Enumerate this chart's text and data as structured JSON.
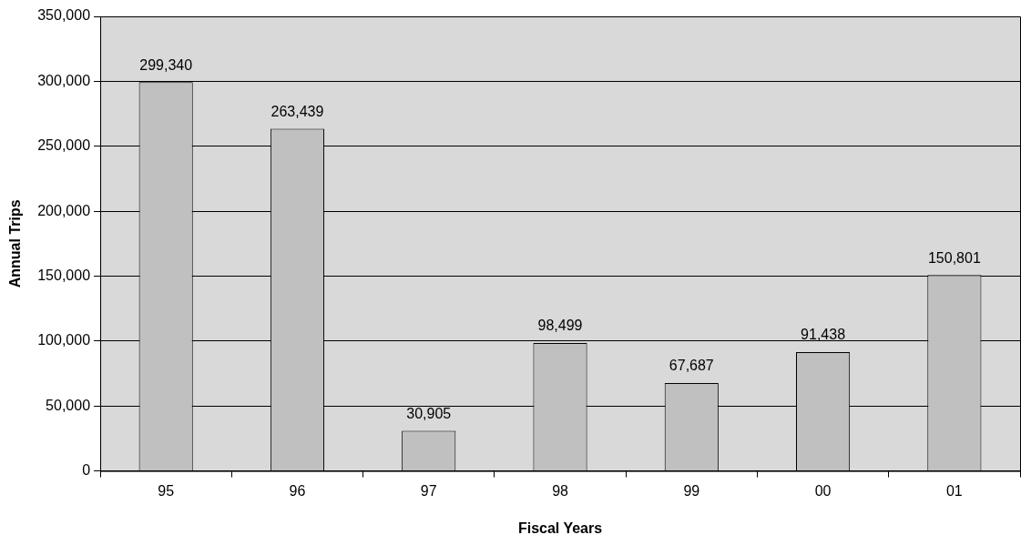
{
  "chart_data": {
    "type": "bar",
    "xlabel": "Fiscal Years",
    "ylabel": "Annual Trips",
    "categories": [
      "95",
      "96",
      "97",
      "98",
      "99",
      "00",
      "01"
    ],
    "values": [
      299340,
      263439,
      30905,
      98499,
      67687,
      91438,
      150801
    ],
    "value_labels": [
      "299,340",
      "263,439",
      "30,905",
      "98,499",
      "67,687",
      "91,438",
      "150,801"
    ],
    "color": "#c0c0c0",
    "ylim": [
      0,
      350000
    ],
    "yticks": [
      {
        "value": 0,
        "label": "0"
      },
      {
        "value": 50000,
        "label": "50,000"
      },
      {
        "value": 100000,
        "label": "100,000"
      },
      {
        "value": 150000,
        "label": "150,000"
      },
      {
        "value": 200000,
        "label": "200,000"
      },
      {
        "value": 250000,
        "label": "250,000"
      },
      {
        "value": 300000,
        "label": "300,000"
      },
      {
        "value": 350000,
        "label": "350,000"
      }
    ],
    "grid": "y",
    "legend": false
  }
}
